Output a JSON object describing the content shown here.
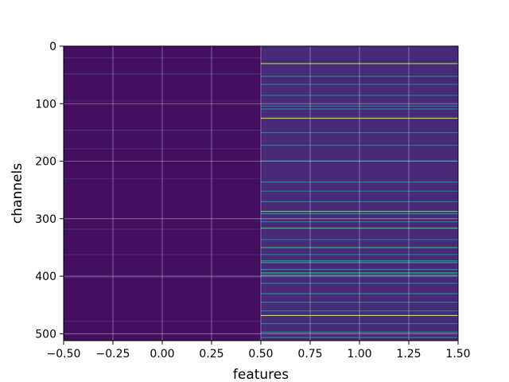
{
  "chart_data": {
    "type": "heatmap",
    "title": "",
    "xlabel": "features",
    "ylabel": "channels",
    "xlim": [
      -0.5,
      1.5
    ],
    "ylim": [
      512,
      0
    ],
    "n_rows": 512,
    "n_cols": 2,
    "colormap": "viridis",
    "x_ticks": [
      "−0.50",
      "−0.25",
      "0.00",
      "0.25",
      "0.50",
      "0.75",
      "1.00",
      "1.25",
      "1.50"
    ],
    "y_ticks": [
      "0",
      "100",
      "200",
      "300",
      "400",
      "500"
    ],
    "grid": true,
    "columns": [
      {
        "x": 0,
        "base_level": 0.04,
        "highlights": [
          {
            "channel": 20,
            "level": 0.12
          },
          {
            "channel": 48,
            "level": 0.14
          },
          {
            "channel": 95,
            "level": 0.1
          },
          {
            "channel": 146,
            "level": 0.16
          },
          {
            "channel": 178,
            "level": 0.12
          },
          {
            "channel": 230,
            "level": 0.1
          },
          {
            "channel": 318,
            "level": 0.12
          },
          {
            "channel": 362,
            "level": 0.1
          },
          {
            "channel": 402,
            "level": 0.12
          },
          {
            "channel": 478,
            "level": 0.1
          }
        ]
      },
      {
        "x": 1,
        "base_level": 0.12,
        "highlights": [
          {
            "channel": 30,
            "level": 0.85
          },
          {
            "channel": 52,
            "level": 0.45
          },
          {
            "channel": 66,
            "level": 0.4
          },
          {
            "channel": 85,
            "level": 0.42
          },
          {
            "channel": 104,
            "level": 0.4
          },
          {
            "channel": 109,
            "level": 0.45
          },
          {
            "channel": 125,
            "level": 0.9
          },
          {
            "channel": 150,
            "level": 0.42
          },
          {
            "channel": 172,
            "level": 0.4
          },
          {
            "channel": 199,
            "level": 0.38
          },
          {
            "channel": 236,
            "level": 0.5
          },
          {
            "channel": 252,
            "level": 0.4
          },
          {
            "channel": 270,
            "level": 0.45
          },
          {
            "channel": 287,
            "level": 0.75
          },
          {
            "channel": 291,
            "level": 0.55
          },
          {
            "channel": 305,
            "level": 0.45
          },
          {
            "channel": 316,
            "level": 0.7
          },
          {
            "channel": 336,
            "level": 0.45
          },
          {
            "channel": 350,
            "level": 0.65
          },
          {
            "channel": 362,
            "level": 0.4
          },
          {
            "channel": 373,
            "level": 0.55
          },
          {
            "channel": 376,
            "level": 0.6
          },
          {
            "channel": 388,
            "level": 0.5
          },
          {
            "channel": 394,
            "level": 0.65
          },
          {
            "channel": 398,
            "level": 0.55
          },
          {
            "channel": 412,
            "level": 0.45
          },
          {
            "channel": 430,
            "level": 0.5
          },
          {
            "channel": 445,
            "level": 0.45
          },
          {
            "channel": 460,
            "level": 0.4
          },
          {
            "channel": 468,
            "level": 0.92
          },
          {
            "channel": 482,
            "level": 0.45
          },
          {
            "channel": 497,
            "level": 0.5
          },
          {
            "channel": 506,
            "level": 0.45
          }
        ]
      }
    ]
  }
}
